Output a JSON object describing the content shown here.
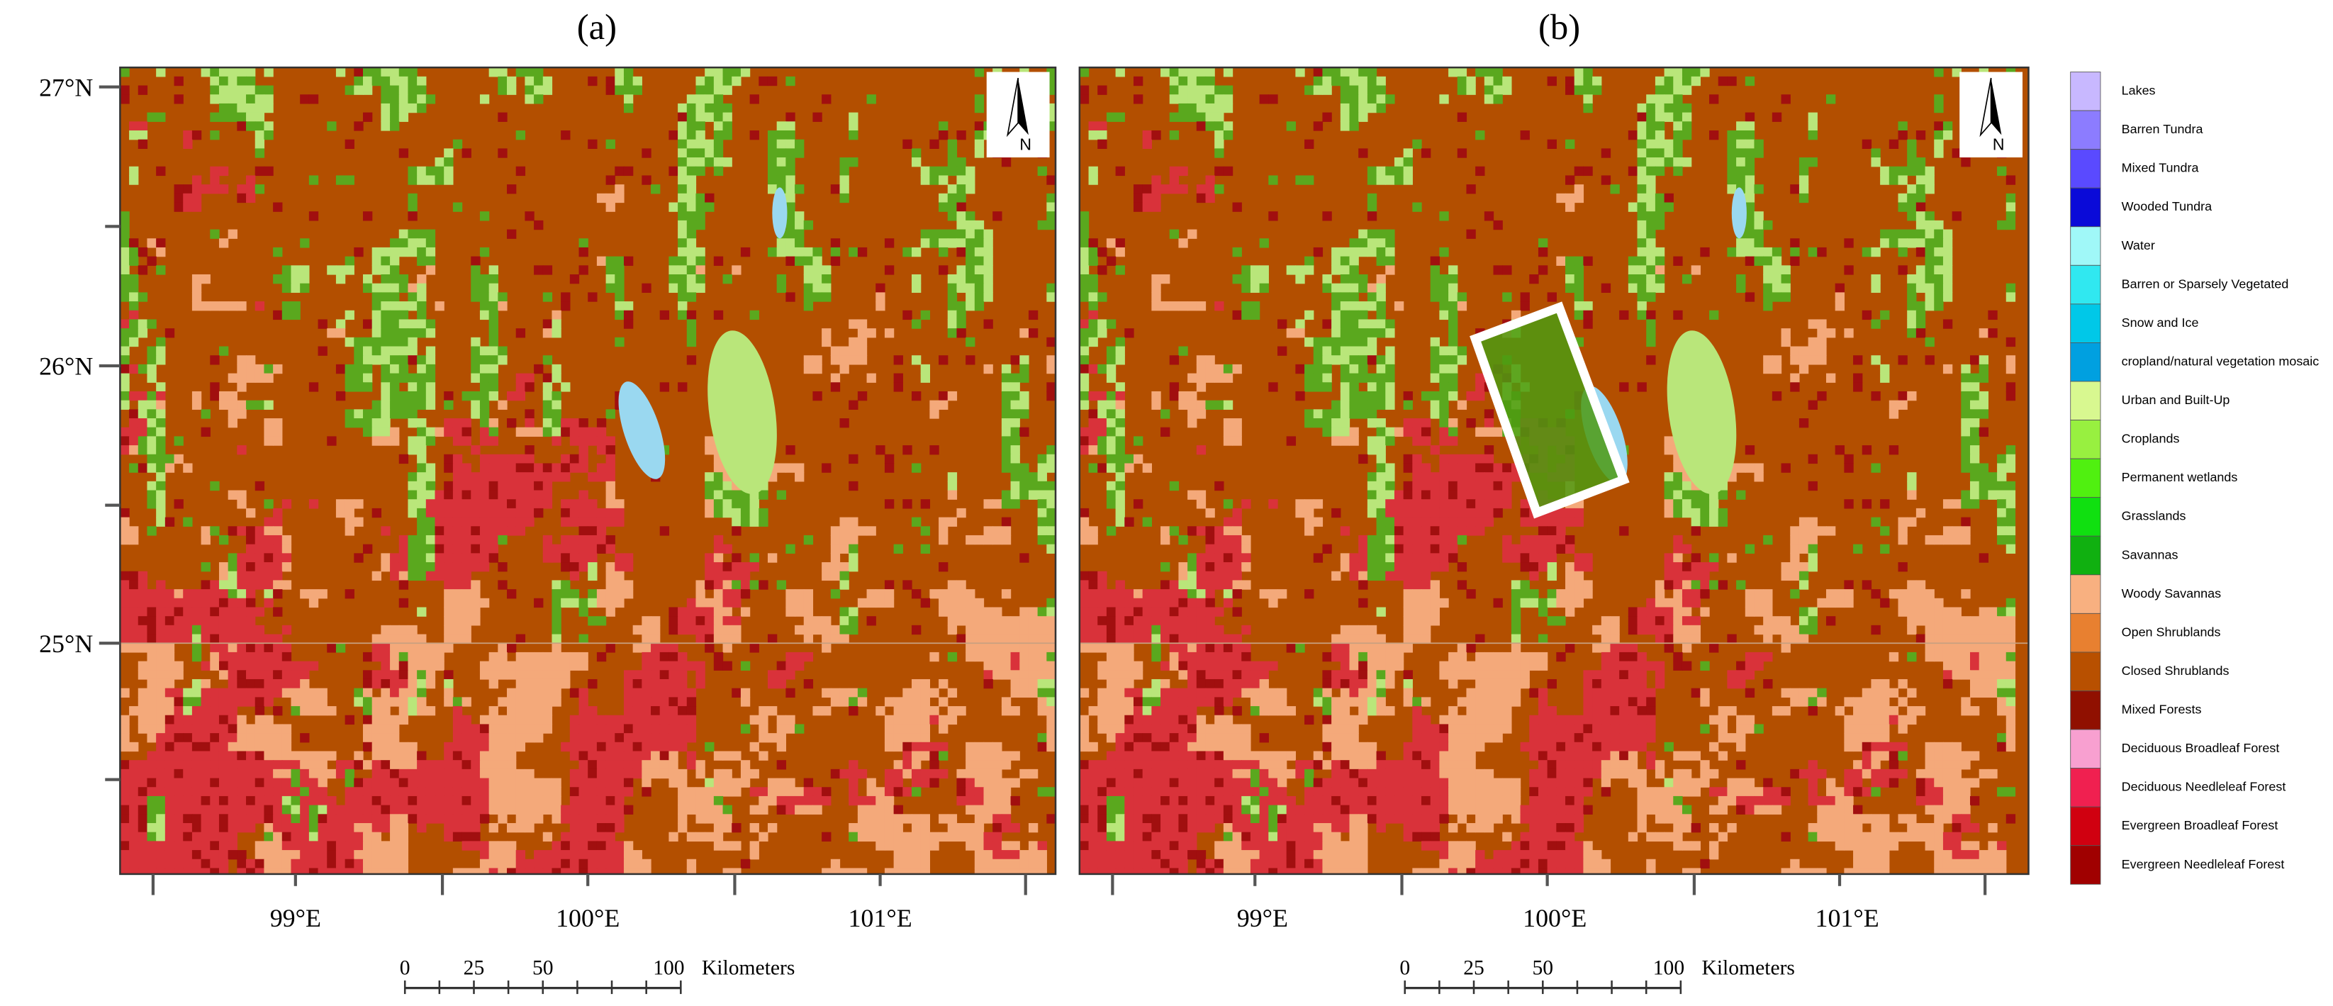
{
  "panels": [
    {
      "label": "(a)"
    },
    {
      "label": "(b)"
    }
  ],
  "latitude_labels": [
    "27°N",
    "26°N",
    "25°N"
  ],
  "longitude_labels": [
    "99°E",
    "100°E",
    "101°E"
  ],
  "north_arrow": "N",
  "scale_bar": {
    "ticks": [
      "0",
      "25",
      "50",
      "100"
    ],
    "unit": "Kilometers"
  },
  "legend": [
    {
      "label": "Lakes",
      "color": "#c8b8ff"
    },
    {
      "label": "Barren Tundra",
      "color": "#8c7cff"
    },
    {
      "label": "Mixed Tundra",
      "color": "#5a4aff"
    },
    {
      "label": "Wooded Tundra",
      "color": "#0a0ad8"
    },
    {
      "label": "Water",
      "color": "#a0f8f8"
    },
    {
      "label": "Barren or Sparsely Vegetated",
      "color": "#30e8f0"
    },
    {
      "label": "Snow and Ice",
      "color": "#00c8e8"
    },
    {
      "label": "cropland/natural vegetation mosaic",
      "color": "#00a0e0"
    },
    {
      "label": "Urban and Built-Up",
      "color": "#d8f890"
    },
    {
      "label": "Croplands",
      "color": "#98f040"
    },
    {
      "label": "Permanent wetlands",
      "color": "#50f010"
    },
    {
      "label": "Grasslands",
      "color": "#10e010"
    },
    {
      "label": "Savannas",
      "color": "#10b010"
    },
    {
      "label": "Woody Savannas",
      "color": "#f8b080"
    },
    {
      "label": "Open Shrublands",
      "color": "#e88030"
    },
    {
      "label": "Closed Shrublands",
      "color": "#b85000"
    },
    {
      "label": "Mixed Forests",
      "color": "#901000"
    },
    {
      "label": "Deciduous Broadleaf Forest",
      "color": "#f8a0d0"
    },
    {
      "label": "Deciduous Needleleaf Forest",
      "color": "#f02050"
    },
    {
      "label": "Evergreen Broadleaf Forest",
      "color": "#d00010"
    },
    {
      "label": "Evergreen Needleleaf Forest",
      "color": "#a00000"
    }
  ]
}
